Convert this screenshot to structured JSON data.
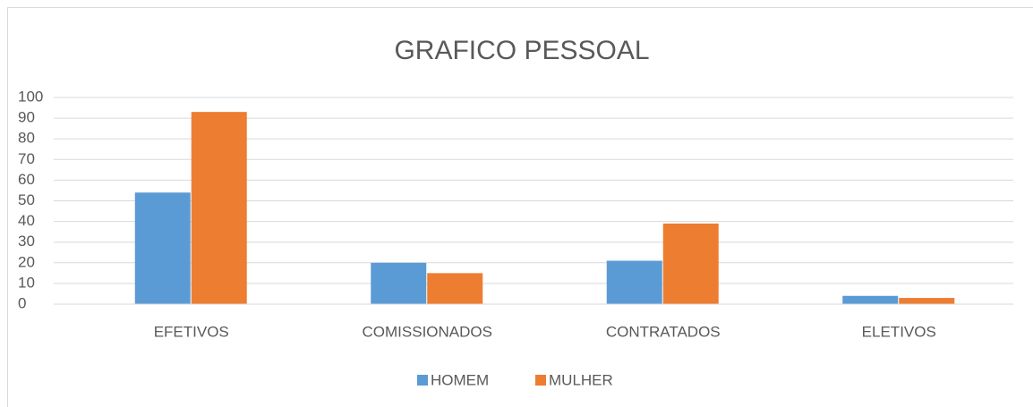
{
  "chart_data": {
    "type": "bar",
    "title": "GRAFICO PESSOAL",
    "categories": [
      "EFETIVOS",
      "COMISSIONADOS",
      "CONTRATADOS",
      "ELETIVOS"
    ],
    "series": [
      {
        "name": "HOMEM",
        "color": "#5b9bd5",
        "values": [
          54,
          20,
          21,
          4
        ]
      },
      {
        "name": "MULHER",
        "color": "#ed7d31",
        "values": [
          93,
          15,
          39,
          3
        ]
      }
    ],
    "ylim": [
      0,
      100
    ],
    "yticks": [
      0,
      10,
      20,
      30,
      40,
      50,
      60,
      70,
      80,
      90,
      100
    ],
    "grid": true,
    "legend": "bottom"
  }
}
